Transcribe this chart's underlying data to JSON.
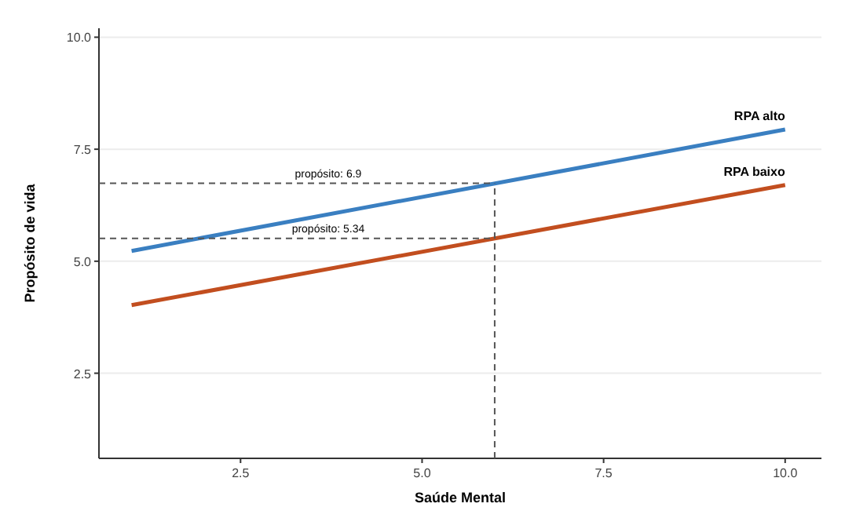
{
  "chart_data": {
    "type": "line",
    "xlabel": "Saúde Mental",
    "ylabel": "Propósito de vida",
    "x": [
      1,
      10
    ],
    "xlim": [
      0.55,
      10.5
    ],
    "ylim": [
      0.6,
      10.2
    ],
    "xticks": [
      {
        "value": 2.5,
        "label": "2.5"
      },
      {
        "value": 5,
        "label": "5.0"
      },
      {
        "value": 7.5,
        "label": "7.5"
      },
      {
        "value": 10,
        "label": "10.0"
      }
    ],
    "yticks": [
      {
        "value": 2.5,
        "label": "2.5"
      },
      {
        "value": 5,
        "label": "5.0"
      },
      {
        "value": 7.5,
        "label": "7.5"
      },
      {
        "value": 10,
        "label": "10.0"
      }
    ],
    "series": [
      {
        "name": "RPA alto",
        "color": "#3a7fc1",
        "values": [
          5.23,
          7.94
        ]
      },
      {
        "name": "RPA baixo",
        "color": "#c24e1f",
        "values": [
          4.02,
          6.7
        ]
      }
    ],
    "ref_lines": [
      {
        "axis": "x",
        "value": 6,
        "line_style": "dashed",
        "color": "#555555"
      },
      {
        "axis": "y",
        "value": 6.74,
        "line_style": "dashed",
        "color": "#555555"
      },
      {
        "axis": "y",
        "value": 5.51,
        "line_style": "dashed",
        "color": "#555555"
      }
    ],
    "annotations": [
      "propósito: 6.9",
      "propósito: 5.34"
    ],
    "grid": "y",
    "legend": false,
    "marker": "none",
    "line_style": "solid"
  }
}
